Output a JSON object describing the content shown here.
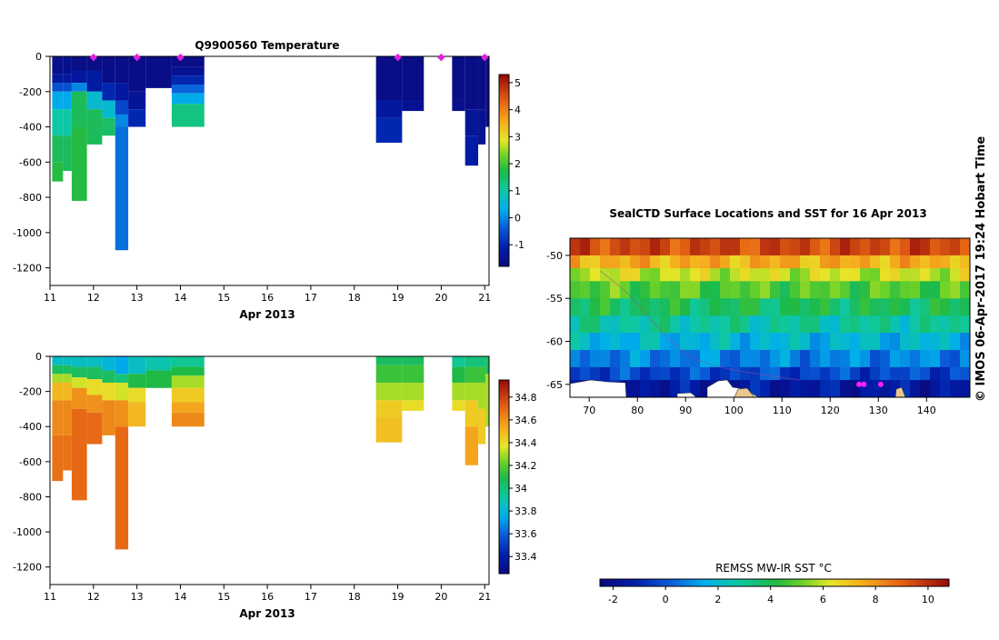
{
  "chart_data": [
    {
      "type": "heatmap",
      "id": "temperature",
      "title": "Q9900560  Temperature",
      "xlabel": "Apr 2013",
      "xlim": [
        11,
        21.1
      ],
      "ylim": [
        -1300,
        0
      ],
      "xticks": [
        "11",
        "12",
        "13",
        "14",
        "15",
        "16",
        "17",
        "18",
        "19",
        "20",
        "21"
      ],
      "yticks": [
        "0",
        "-200",
        "-400",
        "-600",
        "-800",
        "-1000",
        "-1200"
      ],
      "colorbar": {
        "min": -1.8,
        "max": 5.3,
        "ticks": [
          "-1",
          "0",
          "1",
          "2",
          "3",
          "4",
          "5"
        ]
      },
      "markers": [
        12.0,
        13.0,
        14.0,
        19.0,
        20.0,
        21.0
      ],
      "profiles": [
        {
          "x0": 11.05,
          "x1": 11.3,
          "layers": [
            [
              0,
              -100,
              -1.6
            ],
            [
              -100,
              -150,
              -1.3
            ],
            [
              -150,
              -200,
              -0.5
            ],
            [
              -200,
              -300,
              0.3
            ],
            [
              -300,
              -450,
              1.0
            ],
            [
              -450,
              -600,
              1.6
            ],
            [
              -600,
              -710,
              1.8
            ]
          ]
        },
        {
          "x0": 11.3,
          "x1": 11.5,
          "layers": [
            [
              0,
              -100,
              -1.6
            ],
            [
              -100,
              -150,
              -1.3
            ],
            [
              -150,
              -200,
              -0.5
            ],
            [
              -200,
              -300,
              0.3
            ],
            [
              -300,
              -450,
              1.0
            ],
            [
              -450,
              -650,
              1.6
            ]
          ]
        },
        {
          "x0": 11.5,
          "x1": 11.85,
          "layers": [
            [
              0,
              -80,
              -1.7
            ],
            [
              -80,
              -150,
              -1.3
            ],
            [
              -150,
              -200,
              0.0
            ],
            [
              -200,
              -400,
              1.6
            ],
            [
              -400,
              -820,
              1.8
            ]
          ]
        },
        {
          "x0": 11.85,
          "x1": 12.2,
          "layers": [
            [
              0,
              -80,
              -1.7
            ],
            [
              -80,
              -200,
              -1.2
            ],
            [
              -200,
              -300,
              0.6
            ],
            [
              -300,
              -500,
              1.6
            ]
          ]
        },
        {
          "x0": 12.2,
          "x1": 12.5,
          "layers": [
            [
              0,
              -150,
              -1.7
            ],
            [
              -150,
              -250,
              -1.0
            ],
            [
              -250,
              -350,
              0.6
            ],
            [
              -350,
              -450,
              1.5
            ]
          ]
        },
        {
          "x0": 12.5,
          "x1": 12.8,
          "layers": [
            [
              0,
              -150,
              -1.7
            ],
            [
              -150,
              -250,
              -1.3
            ],
            [
              -250,
              -330,
              -0.6
            ],
            [
              -330,
              -400,
              0.0
            ],
            [
              -400,
              -1100,
              -0.2
            ]
          ]
        },
        {
          "x0": 12.8,
          "x1": 13.2,
          "layers": [
            [
              0,
              -200,
              -1.7
            ],
            [
              -200,
              -300,
              -1.4
            ],
            [
              -300,
              -400,
              -1.0
            ]
          ]
        },
        {
          "x0": 13.2,
          "x1": 13.8,
          "layers": [
            [
              0,
              -180,
              -1.7
            ]
          ]
        },
        {
          "x0": 13.8,
          "x1": 14.55,
          "layers": [
            [
              0,
              -60,
              -1.7
            ],
            [
              -60,
              -110,
              -1.5
            ],
            [
              -110,
              -160,
              -1.0
            ],
            [
              -160,
              -210,
              -0.3
            ],
            [
              -210,
              -270,
              0.3
            ],
            [
              -270,
              -400,
              1.3
            ]
          ]
        },
        {
          "x0": 18.5,
          "x1": 19.1,
          "layers": [
            [
              0,
              -250,
              -1.7
            ],
            [
              -250,
              -350,
              -1.3
            ],
            [
              -350,
              -490,
              -1.0
            ]
          ]
        },
        {
          "x0": 19.1,
          "x1": 19.6,
          "layers": [
            [
              0,
              -250,
              -1.7
            ],
            [
              -250,
              -310,
              -1.5
            ]
          ]
        },
        {
          "x0": 20.25,
          "x1": 20.55,
          "layers": [
            [
              0,
              -250,
              -1.7
            ],
            [
              -250,
              -310,
              -1.6
            ]
          ]
        },
        {
          "x0": 20.55,
          "x1": 20.85,
          "layers": [
            [
              0,
              -300,
              -1.7
            ],
            [
              -300,
              -450,
              -1.4
            ],
            [
              -450,
              -620,
              -1.2
            ]
          ]
        },
        {
          "x0": 20.85,
          "x1": 21.02,
          "layers": [
            [
              0,
              -300,
              -1.7
            ],
            [
              -300,
              -500,
              -1.5
            ]
          ]
        },
        {
          "x0": 21.02,
          "x1": 21.1,
          "layers": [
            [
              0,
              -400,
              -1.7
            ]
          ]
        }
      ]
    },
    {
      "type": "heatmap",
      "id": "salinity",
      "title": "",
      "xlabel": "Apr 2013",
      "xlim": [
        11,
        21.1
      ],
      "ylim": [
        -1300,
        0
      ],
      "xticks": [
        "11",
        "12",
        "13",
        "14",
        "15",
        "16",
        "17",
        "18",
        "19",
        "20",
        "21"
      ],
      "yticks": [
        "0",
        "-200",
        "-400",
        "-600",
        "-800",
        "-1000",
        "-1200"
      ],
      "colorbar": {
        "min": 33.25,
        "max": 34.95,
        "ticks": [
          "33.4",
          "33.6",
          "33.8",
          "34",
          "34.2",
          "34.4",
          "34.6",
          "34.8"
        ]
      },
      "profiles": [
        {
          "x0": 11.05,
          "x1": 11.3,
          "layers": [
            [
              0,
              -50,
              33.85
            ],
            [
              -50,
              -100,
              34.05
            ],
            [
              -100,
              -150,
              34.3
            ],
            [
              -150,
              -250,
              34.5
            ],
            [
              -250,
              -450,
              34.62
            ],
            [
              -450,
              -710,
              34.68
            ]
          ]
        },
        {
          "x0": 11.3,
          "x1": 11.5,
          "layers": [
            [
              0,
              -50,
              33.85
            ],
            [
              -50,
              -100,
              34.05
            ],
            [
              -100,
              -150,
              34.3
            ],
            [
              -150,
              -250,
              34.5
            ],
            [
              -250,
              -450,
              34.62
            ],
            [
              -450,
              -650,
              34.68
            ]
          ]
        },
        {
          "x0": 11.5,
          "x1": 11.85,
          "layers": [
            [
              0,
              -60,
              33.85
            ],
            [
              -60,
              -120,
              34.05
            ],
            [
              -120,
              -180,
              34.35
            ],
            [
              -180,
              -300,
              34.6
            ],
            [
              -300,
              -820,
              34.7
            ]
          ]
        },
        {
          "x0": 11.85,
          "x1": 12.2,
          "layers": [
            [
              0,
              -60,
              33.85
            ],
            [
              -60,
              -130,
              34.05
            ],
            [
              -130,
              -220,
              34.4
            ],
            [
              -220,
              -320,
              34.6
            ],
            [
              -320,
              -500,
              34.7
            ]
          ]
        },
        {
          "x0": 12.2,
          "x1": 12.5,
          "layers": [
            [
              0,
              -80,
              33.8
            ],
            [
              -80,
              -150,
              34.05
            ],
            [
              -150,
              -250,
              34.4
            ],
            [
              -250,
              -450,
              34.62
            ]
          ]
        },
        {
          "x0": 12.5,
          "x1": 12.8,
          "layers": [
            [
              0,
              -100,
              33.75
            ],
            [
              -100,
              -150,
              34.0
            ],
            [
              -150,
              -250,
              34.35
            ],
            [
              -250,
              -400,
              34.6
            ],
            [
              -400,
              -1100,
              34.7
            ]
          ]
        },
        {
          "x0": 12.8,
          "x1": 13.2,
          "layers": [
            [
              0,
              -100,
              33.85
            ],
            [
              -100,
              -180,
              34.1
            ],
            [
              -180,
              -260,
              34.4
            ],
            [
              -260,
              -400,
              34.5
            ]
          ]
        },
        {
          "x0": 13.2,
          "x1": 13.8,
          "layers": [
            [
              0,
              -80,
              33.9
            ],
            [
              -80,
              -180,
              34.1
            ]
          ]
        },
        {
          "x0": 13.8,
          "x1": 14.55,
          "layers": [
            [
              0,
              -60,
              33.95
            ],
            [
              -60,
              -110,
              34.1
            ],
            [
              -110,
              -180,
              34.3
            ],
            [
              -180,
              -260,
              34.45
            ],
            [
              -260,
              -320,
              34.55
            ],
            [
              -320,
              -400,
              34.62
            ]
          ]
        },
        {
          "x0": 18.5,
          "x1": 19.1,
          "layers": [
            [
              0,
              -50,
              34.05
            ],
            [
              -50,
              -150,
              34.15
            ],
            [
              -150,
              -250,
              34.3
            ],
            [
              -250,
              -350,
              34.45
            ],
            [
              -350,
              -490,
              34.48
            ]
          ]
        },
        {
          "x0": 19.1,
          "x1": 19.6,
          "layers": [
            [
              0,
              -50,
              34.05
            ],
            [
              -50,
              -150,
              34.15
            ],
            [
              -150,
              -250,
              34.3
            ],
            [
              -250,
              -310,
              34.4
            ]
          ]
        },
        {
          "x0": 20.25,
          "x1": 20.55,
          "layers": [
            [
              0,
              -60,
              33.95
            ],
            [
              -60,
              -150,
              34.1
            ],
            [
              -150,
              -250,
              34.3
            ],
            [
              -250,
              -310,
              34.4
            ]
          ]
        },
        {
          "x0": 20.55,
          "x1": 20.85,
          "layers": [
            [
              0,
              -60,
              34.0
            ],
            [
              -60,
              -150,
              34.15
            ],
            [
              -150,
              -250,
              34.3
            ],
            [
              -250,
              -400,
              34.45
            ],
            [
              -400,
              -620,
              34.55
            ]
          ]
        },
        {
          "x0": 20.85,
          "x1": 21.02,
          "layers": [
            [
              0,
              -60,
              34.0
            ],
            [
              -60,
              -150,
              34.15
            ],
            [
              -150,
              -300,
              34.3
            ],
            [
              -300,
              -500,
              34.45
            ]
          ]
        },
        {
          "x0": 21.02,
          "x1": 21.1,
          "layers": [
            [
              0,
              -100,
              34.05
            ],
            [
              -100,
              -400,
              34.3
            ]
          ]
        }
      ]
    },
    {
      "type": "map",
      "id": "sst-map",
      "title": "SealCTD Surface Locations and SST for 16 Apr 2013",
      "xlim": [
        66,
        149
      ],
      "ylim": [
        -66.5,
        -48
      ],
      "xticks": [
        "70",
        "80",
        "90",
        "100",
        "110",
        "120",
        "130",
        "140"
      ],
      "yticks": [
        "-50",
        "-55",
        "-60",
        "-65"
      ],
      "lat_bands": [
        {
          "lat0": -48,
          "lat1": -50,
          "sst": 9.5
        },
        {
          "lat0": -50,
          "lat1": -51.5,
          "sst": 7.5
        },
        {
          "lat0": -51.5,
          "lat1": -53,
          "sst": 6.0
        },
        {
          "lat0": -53,
          "lat1": -55,
          "sst": 4.8
        },
        {
          "lat0": -55,
          "lat1": -57,
          "sst": 3.8
        },
        {
          "lat0": -57,
          "lat1": -59,
          "sst": 2.8
        },
        {
          "lat0": -59,
          "lat1": -61,
          "sst": 1.8
        },
        {
          "lat0": -61,
          "lat1": -63,
          "sst": 0.8
        },
        {
          "lat0": -63,
          "lat1": -64.5,
          "sst": -0.3
        },
        {
          "lat0": -64.5,
          "lat1": -66.5,
          "sst": -1.5
        }
      ],
      "locations": [
        {
          "lon": 126,
          "lat": -65
        },
        {
          "lon": 127,
          "lat": -65
        },
        {
          "lon": 130.5,
          "lat": -65
        }
      ],
      "colorbar": {
        "label": "REMSS MW-IR SST °C",
        "min": -2.5,
        "max": 10.8,
        "ticks": [
          "-2",
          "0",
          "2",
          "4",
          "6",
          "8",
          "10"
        ]
      }
    }
  ],
  "footer": "©  IMOS 06-Apr-2017 19:24 Hobart Time"
}
